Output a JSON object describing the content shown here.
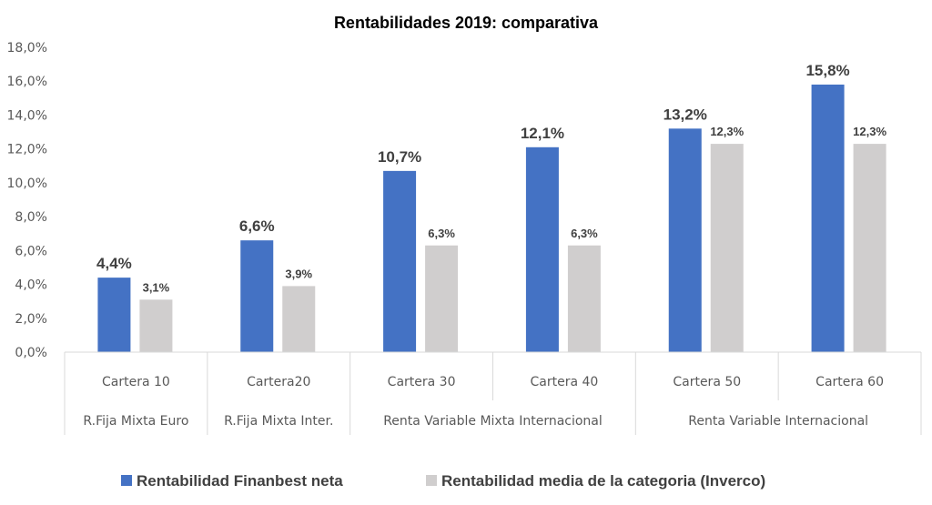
{
  "chart_data": {
    "type": "bar",
    "title": "Rentabilidades 2019: comparativa",
    "categories": [
      "Cartera 10",
      "Cartera20",
      "Cartera 30",
      "Cartera 40",
      "Cartera 50",
      "Cartera 60"
    ],
    "groups": [
      {
        "label": "R.Fija Mixta Euro",
        "span": 1
      },
      {
        "label": "R.Fija Mixta Inter.",
        "span": 1
      },
      {
        "label": "Renta Variable Mixta Internacional",
        "span": 2
      },
      {
        "label": "Renta Variable Internacional",
        "span": 2
      }
    ],
    "series": [
      {
        "name": "Rentabilidad Finanbest neta",
        "color": "#4472C4",
        "values": [
          4.4,
          6.6,
          10.7,
          12.1,
          13.2,
          15.8
        ],
        "labels": [
          "4,4%",
          "6,6%",
          "10,7%",
          "12,1%",
          "13,2%",
          "15,8%"
        ]
      },
      {
        "name": "Rentabilidad media de la categoria (Inverco)",
        "color": "#D0CECE",
        "values": [
          3.1,
          3.9,
          6.3,
          6.3,
          12.3,
          12.3
        ],
        "labels": [
          "3,1%",
          "3,9%",
          "6,3%",
          "6,3%",
          "12,3%",
          "12,3%"
        ]
      }
    ],
    "ylim": [
      0,
      18
    ],
    "yticks": [
      "0,0%",
      "2,0%",
      "4,0%",
      "6,0%",
      "8,0%",
      "10,0%",
      "12,0%",
      "14,0%",
      "16,0%",
      "18,0%"
    ],
    "grid": false,
    "legend": "bottom"
  }
}
